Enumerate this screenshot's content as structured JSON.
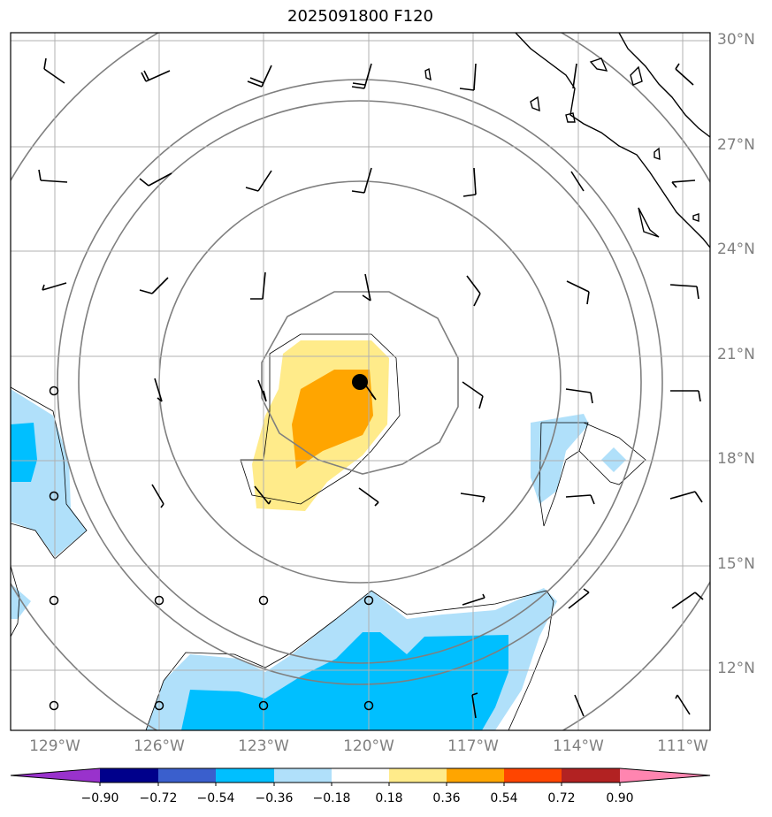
{
  "title": "2025091800 F120",
  "lat_labels": [
    "30°N",
    "27°N",
    "24°N",
    "21°N",
    "18°N",
    "15°N",
    "12°N"
  ],
  "lon_labels": [
    "129°W",
    "126°W",
    "123°W",
    "120°W",
    "117°W",
    "114°W",
    "111°W"
  ],
  "colorbar": {
    "ticks": [
      "−0.90",
      "−0.72",
      "−0.54",
      "−0.36",
      "−0.18",
      "0.18",
      "0.36",
      "0.54",
      "0.72",
      "0.90"
    ],
    "colors": [
      "#9932cc",
      "#00008b",
      "#3a5fcd",
      "#00bfff",
      "#b0e0fa",
      "#ffffff",
      "#ffeb8a",
      "#ffa500",
      "#ff4500",
      "#b22222",
      "#ff85b0"
    ]
  },
  "storm_center": {
    "lon": -120.2,
    "lat": 20.2
  }
}
